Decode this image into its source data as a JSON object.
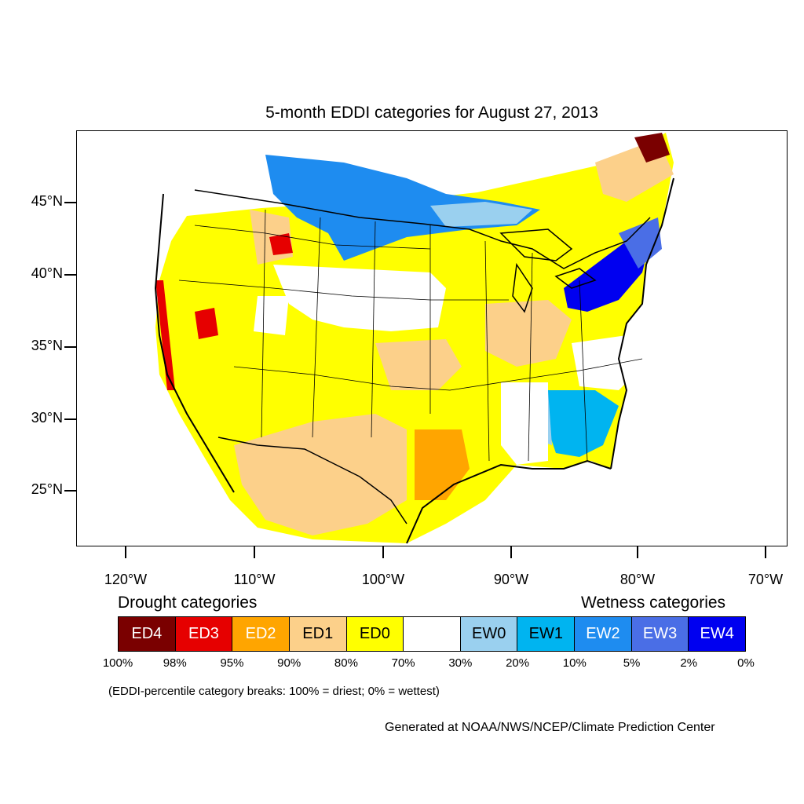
{
  "title": "5-month EDDI categories for August 27, 2013",
  "lat_labels": [
    "45°N",
    "40°N",
    "35°N",
    "30°N",
    "25°N"
  ],
  "lon_labels": [
    "120°W",
    "110°W",
    "100°W",
    "90°W",
    "80°W",
    "70°W"
  ],
  "drought_heading": "Drought categories",
  "wetness_heading": "Wetness categories",
  "legend": [
    {
      "label": "ED4",
      "color": "#7a0000",
      "text_color": "#ffffff"
    },
    {
      "label": "ED3",
      "color": "#e60000",
      "text_color": "#ffffff"
    },
    {
      "label": "ED2",
      "color": "#ffa500",
      "text_color": "#ffffff"
    },
    {
      "label": "ED1",
      "color": "#fcd08a",
      "text_color": "#000000"
    },
    {
      "label": "ED0",
      "color": "#ffff00",
      "text_color": "#000000"
    },
    {
      "label": "",
      "color": "#ffffff",
      "text_color": "#000000"
    },
    {
      "label": "EW0",
      "color": "#9ad0ef",
      "text_color": "#000000"
    },
    {
      "label": "EW1",
      "color": "#00b4f0",
      "text_color": "#000000"
    },
    {
      "label": "EW2",
      "color": "#1e8cf0",
      "text_color": "#ffffff"
    },
    {
      "label": "EW3",
      "color": "#4a6ee6",
      "text_color": "#ffffff"
    },
    {
      "label": "EW4",
      "color": "#0000f0",
      "text_color": "#ffffff"
    }
  ],
  "percentiles": [
    "100%",
    "98%",
    "95%",
    "90%",
    "80%",
    "70%",
    "30%",
    "20%",
    "10%",
    "5%",
    "2%",
    "0%"
  ],
  "note": "(EDDI-percentile category breaks: 100% = driest; 0% = wettest)",
  "credit": "Generated at NOAA/NWS/NCEP/Climate Prediction Center"
}
